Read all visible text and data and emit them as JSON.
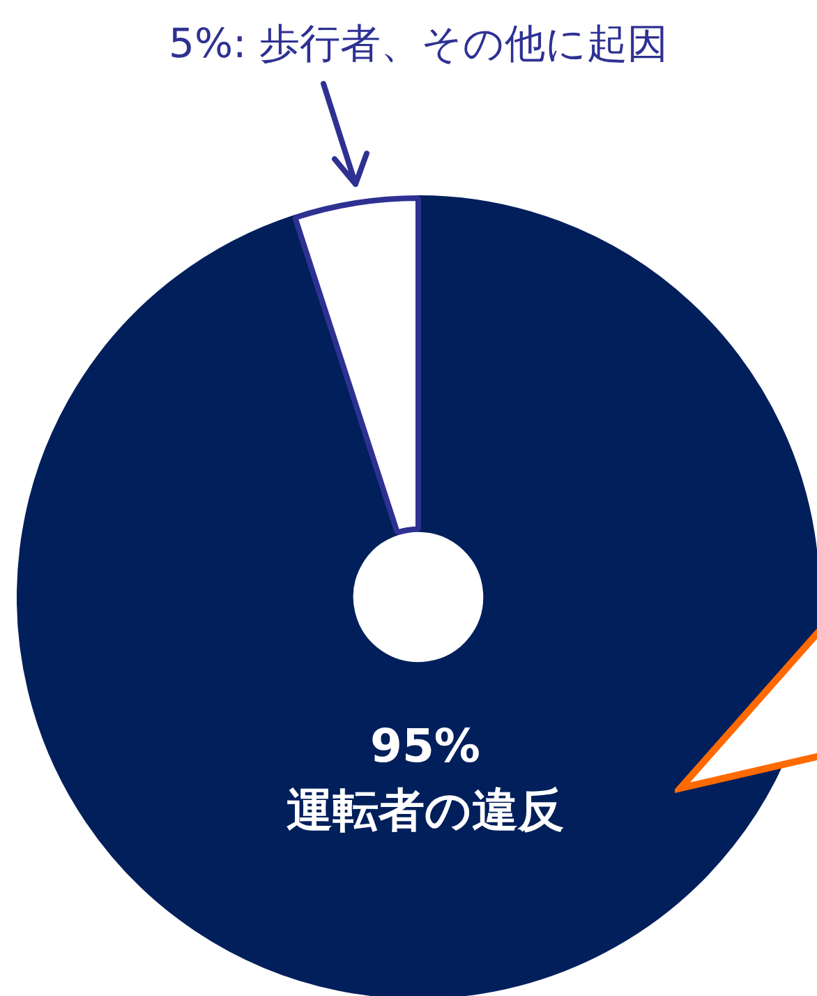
{
  "chart_data": {
    "type": "donut",
    "categories": [
      "運転者の違反",
      "歩行者、その他に起因"
    ],
    "values": [
      95,
      5
    ],
    "value_labels": [
      "95%",
      "5%:"
    ],
    "colors": [
      "#001f5b",
      "#ffffff"
    ],
    "legend": false
  }
}
